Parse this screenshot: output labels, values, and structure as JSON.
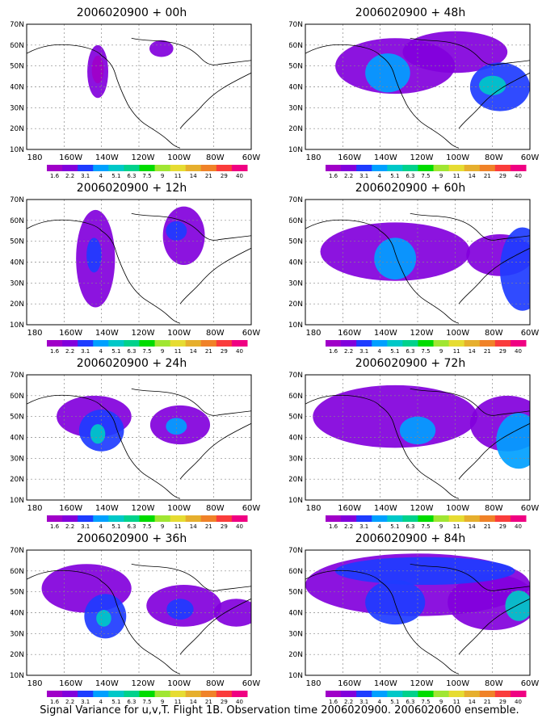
{
  "panels": [
    {
      "title": "2006020900 + 00h"
    },
    {
      "title": "2006020900 + 48h"
    },
    {
      "title": "2006020900 + 12h"
    },
    {
      "title": "2006020900 + 60h"
    },
    {
      "title": "2006020900 + 24h"
    },
    {
      "title": "2006020900 + 72h"
    },
    {
      "title": "2006020900 + 36h"
    },
    {
      "title": "2006020900 + 84h"
    }
  ],
  "lat_labels": [
    "70N",
    "60N",
    "50N",
    "40N",
    "30N",
    "20N",
    "10N"
  ],
  "lon_labels": [
    "180",
    "160W",
    "140W",
    "120W",
    "100W",
    "80W",
    "60W"
  ],
  "colorbar": {
    "labels": [
      "1.6",
      "2.2",
      "3.1",
      "4",
      "5.1",
      "6.3",
      "7.5",
      "9",
      "11",
      "14",
      "21",
      "29",
      "40"
    ],
    "colors": [
      "#a000c8",
      "#8200dc",
      "#1e3cff",
      "#00a0ff",
      "#00c8c8",
      "#00d28c",
      "#00dc00",
      "#a0e632",
      "#e6dc32",
      "#e6af2d",
      "#f08228",
      "#fa3c3c",
      "#f00082"
    ]
  },
  "palette": {
    "land": "#ffffff",
    "grid": "#888888",
    "coast": "#000000"
  },
  "footer": "Signal Variance for u,v,T. Flight 1B. Observation time 2006020900. 2006020600 ensemble."
}
